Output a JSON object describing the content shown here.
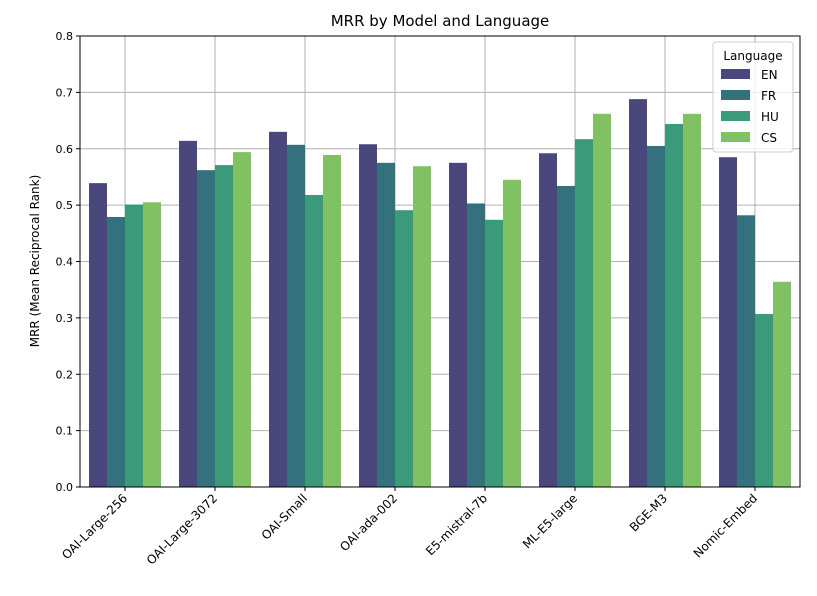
{
  "chart_data": {
    "type": "bar",
    "title": "MRR by Model and Language",
    "xlabel": "",
    "ylabel": "MRR  (Mean Reciprocal Rank)",
    "ylim": [
      0,
      0.8
    ],
    "yticks": [
      "0.0",
      "0.1",
      "0.2",
      "0.3",
      "0.4",
      "0.5",
      "0.6",
      "0.7",
      "0.8"
    ],
    "grid": true,
    "legend": {
      "title": "Language",
      "placement": "top-right"
    },
    "categories": [
      "OAI-Large-256",
      "OAI-Large-3072",
      "OAI-Small",
      "OAI-ada-002",
      "E5-mistral-7b",
      "ML-E5-large",
      "BGE-M3",
      "Nomic-Embed"
    ],
    "series": [
      {
        "name": "EN",
        "color": "#4a477c",
        "values": [
          0.539,
          0.614,
          0.63,
          0.608,
          0.575,
          0.592,
          0.688,
          0.585
        ]
      },
      {
        "name": "FR",
        "color": "#35707f",
        "values": [
          0.479,
          0.562,
          0.607,
          0.575,
          0.503,
          0.534,
          0.605,
          0.482
        ]
      },
      {
        "name": "HU",
        "color": "#3a9a7a",
        "values": [
          0.501,
          0.571,
          0.518,
          0.491,
          0.474,
          0.617,
          0.644,
          0.307
        ]
      },
      {
        "name": "CS",
        "color": "#80c163",
        "values": [
          0.505,
          0.594,
          0.589,
          0.569,
          0.545,
          0.662,
          0.662,
          0.364
        ]
      }
    ]
  }
}
